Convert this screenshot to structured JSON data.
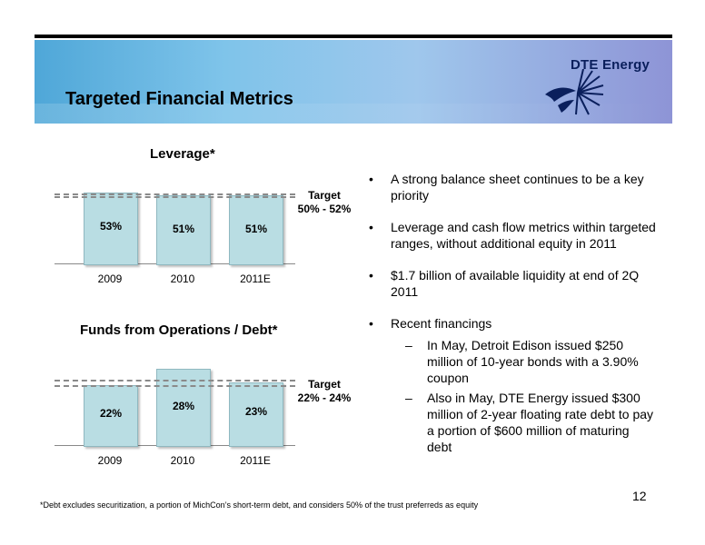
{
  "slide": {
    "title": "Targeted Financial Metrics",
    "logo_text": "DTE Energy",
    "logo_icon": "dte-sunburst-icon",
    "page_number": "12",
    "footnote": "*Debt excludes securitization, a portion of MichCon’s short-term debt, and considers 50% of the trust preferreds as equity"
  },
  "colors": {
    "bar_fill": "#b9dde3",
    "target_line": "#8a8a8a",
    "header_blue": "#7fc4ea",
    "header_purple": "#8e94d6"
  },
  "chart_data": [
    {
      "type": "bar",
      "title": "Leverage*",
      "categories": [
        "2009",
        "2010",
        "2011E"
      ],
      "values": [
        53,
        51,
        51
      ],
      "value_labels": [
        "53%",
        "51%",
        "51%"
      ],
      "target_label_line1": "Target",
      "target_label_line2": "50% - 52%",
      "target_range": [
        50,
        52
      ]
    },
    {
      "type": "bar",
      "title": "Funds from Operations / Debt*",
      "categories": [
        "2009",
        "2010",
        "2011E"
      ],
      "values": [
        22,
        28,
        23
      ],
      "value_labels": [
        "22%",
        "28%",
        "23%"
      ],
      "target_label_line1": "Target",
      "target_label_line2": "22% - 24%",
      "target_range": [
        22,
        24
      ]
    }
  ],
  "bullets": [
    {
      "text": "A strong balance sheet continues to be a key priority"
    },
    {
      "text": "Leverage and cash flow metrics within targeted ranges, without additional equity in 2011"
    },
    {
      "text": "$1.7 billion of available liquidity at end of 2Q 2011"
    },
    {
      "text": "Recent financings"
    }
  ],
  "sub_bullets": [
    {
      "text": "In May, Detroit Edison issued $250 million of 10-year bonds with a 3.90% coupon"
    },
    {
      "text": "Also in May, DTE Energy issued $300 million of 2-year floating rate debt to pay a portion of $600 million of maturing debt"
    }
  ],
  "bullet_glyph": "•",
  "sub_glyph": "–"
}
